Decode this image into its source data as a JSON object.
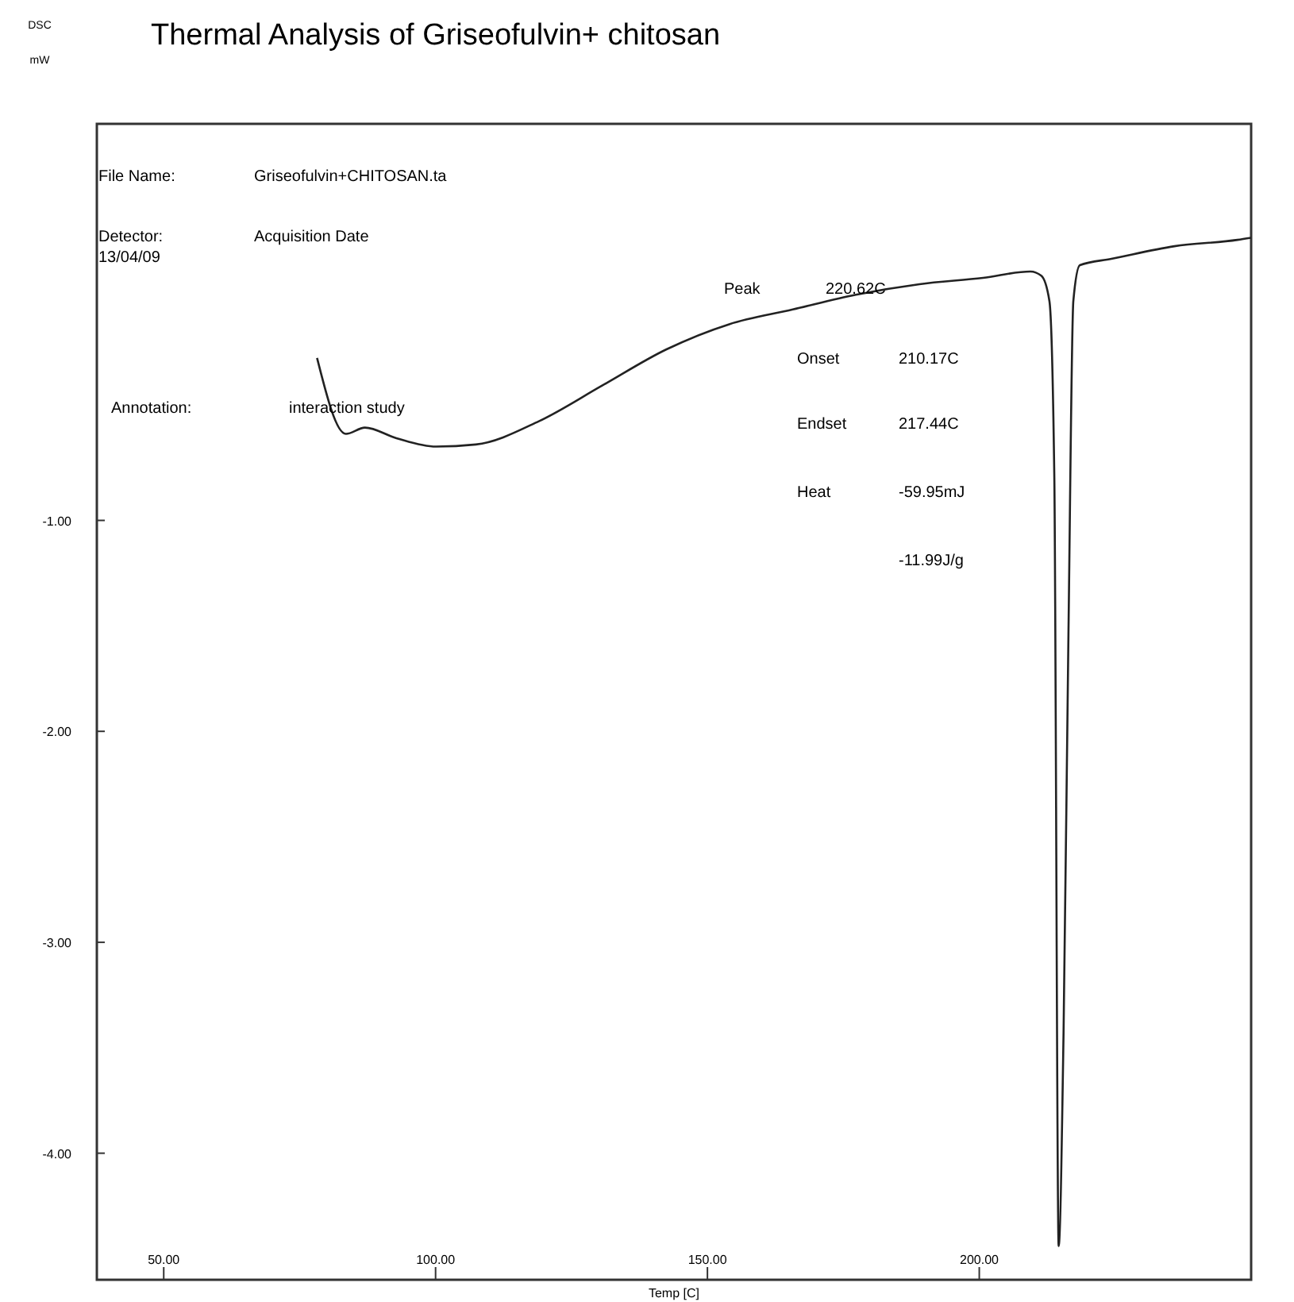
{
  "chart_data": {
    "type": "line",
    "title": "Thermal Analysis of Griseofulvin+ chitosan",
    "ylabel": "DSC mW",
    "xlabel": "Temp [C]",
    "xlim": [
      37.7,
      250
    ],
    "ylim": [
      -4.6,
      0.88
    ],
    "xticks": [
      {
        "value": 50,
        "label": "50.00"
      },
      {
        "value": 100,
        "label": "100.00"
      },
      {
        "value": 150,
        "label": "150.00"
      },
      {
        "value": 200,
        "label": "200.00"
      }
    ],
    "yticks": [
      {
        "value": -1,
        "label": "-1.00"
      },
      {
        "value": -2,
        "label": "-2.00"
      },
      {
        "value": -3,
        "label": "-3.00"
      },
      {
        "value": -4,
        "label": "-4.00"
      }
    ],
    "grid": false,
    "marker": "none",
    "line_style": "solid",
    "series": [
      {
        "color": "#222222",
        "x": [
          78.2,
          83.5,
          87,
          92.8,
          100.1,
          107.4,
          119,
          130.7,
          142.4,
          154,
          165.7,
          177.3,
          189,
          200.7,
          209.4,
          211.4,
          212.9,
          213.8,
          214.6,
          215.5,
          216.4,
          217.3,
          218.5,
          224.3,
          235.9,
          247.5,
          250
        ],
        "values": [
          -0.23,
          -0.59,
          -0.56,
          -0.61,
          -0.65,
          -0.64,
          -0.53,
          -0.36,
          -0.19,
          -0.07,
          0.0,
          0.07,
          0.12,
          0.15,
          0.18,
          0.16,
          0.04,
          -0.79,
          -4.44,
          -3.43,
          -1.54,
          0.04,
          0.21,
          0.24,
          0.3,
          0.33,
          0.34
        ]
      }
    ],
    "annotations": [
      "File Name:",
      "Griseofulvin+CHITOSAN.ta",
      "Detector:",
      "Acquisition Date",
      "13/04/09",
      "Annotation:",
      "interaction study",
      "Peak",
      "220.62C",
      "Onset",
      "210.17C",
      "Endset",
      "217.44C",
      "Heat",
      "-59.95mJ",
      "-11.99J/g"
    ]
  }
}
